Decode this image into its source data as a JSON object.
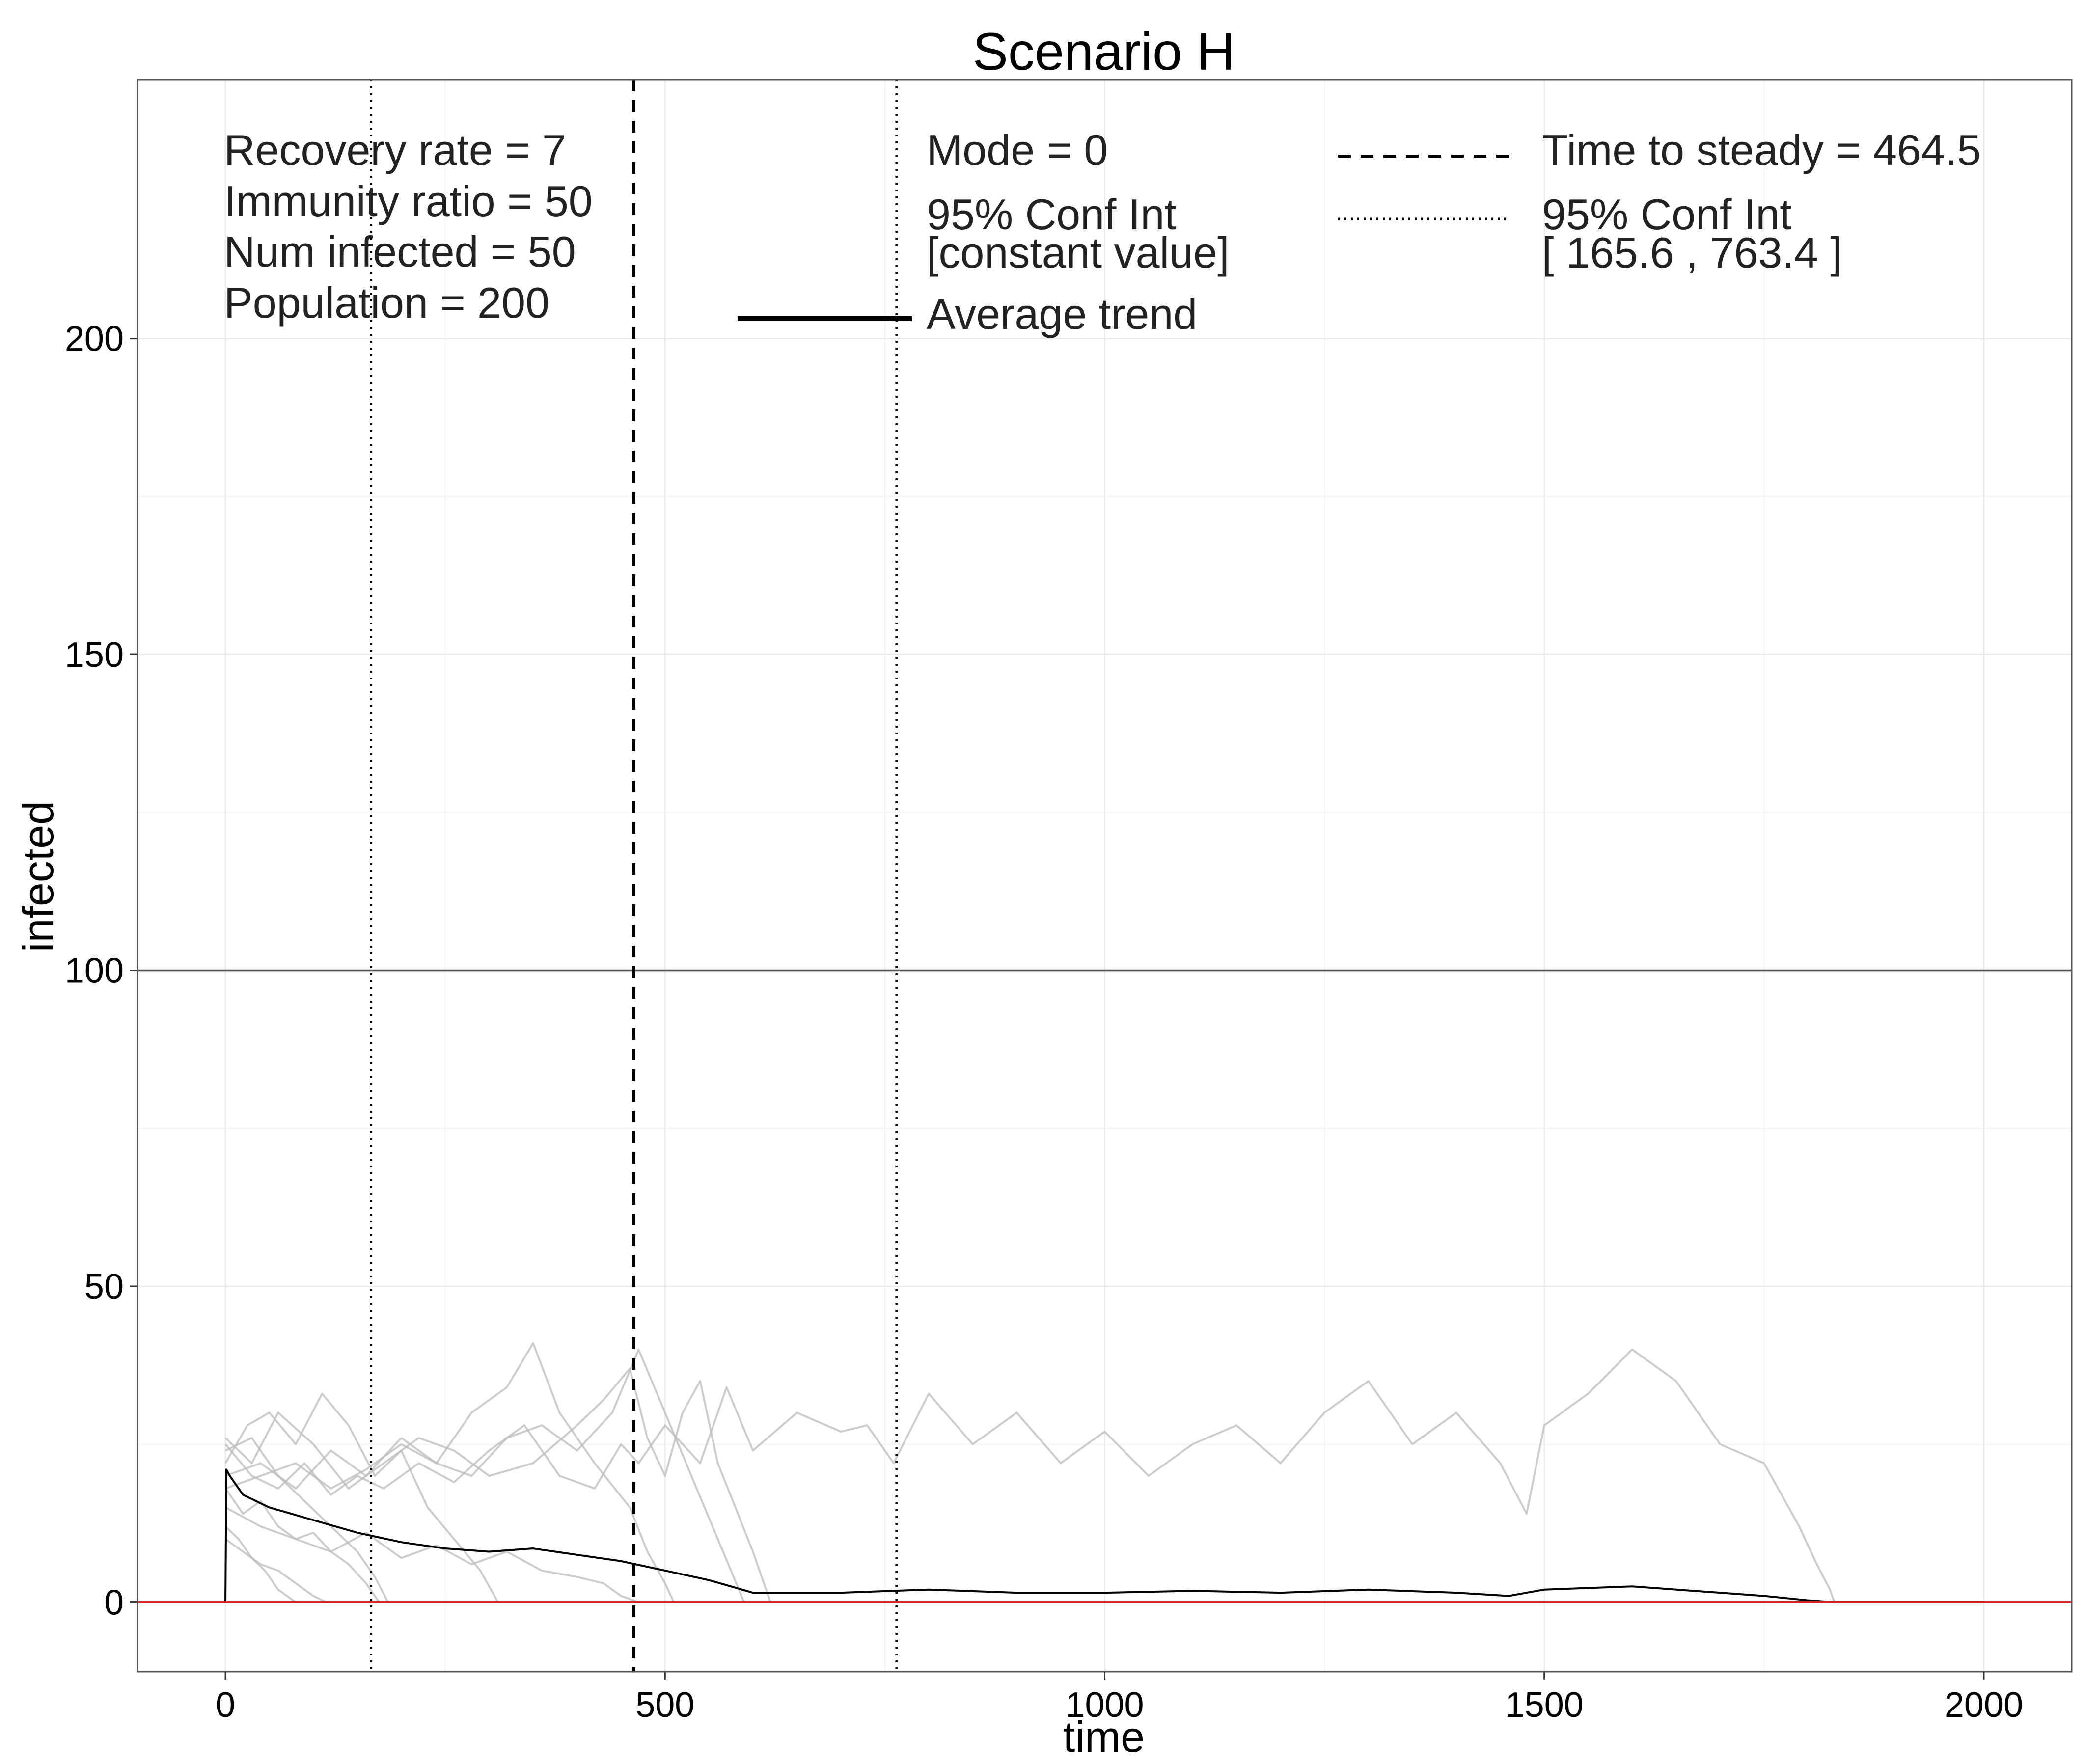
{
  "chart_data": {
    "type": "line",
    "title": "Scenario H",
    "xlabel": "time",
    "ylabel": "infected",
    "xlim": [
      -100,
      2100
    ],
    "ylim": [
      -11,
      241
    ],
    "x_ticks": [
      0,
      500,
      1000,
      1500,
      2000
    ],
    "y_ticks": [
      0,
      50,
      100,
      150,
      200
    ],
    "grid": true,
    "annotations": {
      "left": [
        "Recovery rate = 7",
        "Immunity ratio = 50",
        "Num infected = 50",
        "Population = 200"
      ],
      "mode": "Mode = 0",
      "mode_ci_label": "95% Conf Int",
      "mode_ci_value": "[constant value]",
      "average_trend": "Average trend",
      "time_to_steady": "Time to steady = 464.5",
      "steady_ci_label": "95% Conf Int",
      "steady_ci_value": "[ 165.6 , 763.4 ]"
    },
    "reference_lines": {
      "horizontal": [
        {
          "y": 100,
          "color": "#555555"
        },
        {
          "y": 0,
          "color": "#e41a1c"
        }
      ],
      "vertical": [
        {
          "x": 464.5,
          "style": "dashed"
        },
        {
          "x": 165.6,
          "style": "dotted"
        },
        {
          "x": 763.4,
          "style": "dotted"
        }
      ]
    },
    "series": [
      {
        "role": "average",
        "color": "#000000",
        "x": [
          0,
          1,
          5,
          20,
          50,
          100,
          150,
          200,
          250,
          300,
          350,
          400,
          450,
          500,
          550,
          600,
          650,
          700,
          800,
          900,
          1000,
          1100,
          1200,
          1300,
          1400,
          1460,
          1500,
          1600,
          1700,
          1750,
          1800,
          1830,
          2000
        ],
        "y": [
          0,
          21,
          20,
          17,
          15,
          13,
          11,
          9.5,
          8.5,
          8,
          8.5,
          7.5,
          6.5,
          5,
          3.5,
          1.5,
          1.5,
          1.5,
          2,
          1.5,
          1.5,
          1.8,
          1.5,
          2,
          1.5,
          1,
          2,
          2.5,
          1.5,
          1,
          0.3,
          0,
          0
        ]
      },
      {
        "role": "run",
        "color": "#bbbbbb",
        "x": [
          0,
          30,
          60,
          90,
          120,
          150,
          180,
          220,
          260,
          300,
          340,
          380,
          420,
          450,
          470,
          500,
          540,
          570,
          600,
          650,
          700,
          730,
          760,
          800,
          850,
          900,
          950,
          1000,
          1050,
          1100,
          1150,
          1200,
          1250,
          1300,
          1350,
          1400,
          1450,
          1480,
          1500,
          1550,
          1600,
          1650,
          1700,
          1750,
          1790,
          1810,
          1825,
          1830
        ],
        "y": [
          25,
          20,
          18,
          22,
          17,
          20,
          18,
          22,
          19,
          24,
          28,
          20,
          18,
          25,
          22,
          28,
          22,
          34,
          24,
          30,
          27,
          28,
          22,
          33,
          25,
          30,
          22,
          27,
          20,
          25,
          28,
          22,
          30,
          35,
          25,
          30,
          22,
          14,
          28,
          33,
          40,
          35,
          25,
          22,
          12,
          6,
          2,
          0
        ]
      },
      {
        "role": "run",
        "color": "#bbbbbb",
        "x": [
          0,
          25,
          50,
          80,
          110,
          140,
          170,
          200,
          230,
          260,
          290,
          310
        ],
        "y": [
          22,
          28,
          30,
          25,
          33,
          28,
          20,
          24,
          15,
          10,
          5,
          0
        ]
      },
      {
        "role": "run",
        "color": "#bbbbbb",
        "x": [
          0,
          20,
          40,
          60,
          80,
          100,
          120,
          140,
          160,
          175
        ],
        "y": [
          18,
          14,
          16,
          12,
          10,
          11,
          8,
          6,
          3,
          0
        ]
      },
      {
        "role": "run",
        "color": "#bbbbbb",
        "x": [
          0,
          40,
          80,
          120,
          160,
          200,
          240,
          280,
          320,
          350,
          380,
          420,
          460,
          480,
          500,
          510
        ],
        "y": [
          20,
          22,
          18,
          24,
          20,
          26,
          22,
          30,
          34,
          41,
          30,
          22,
          15,
          8,
          3,
          0
        ]
      },
      {
        "role": "run",
        "color": "#bbbbbb",
        "x": [
          0,
          30,
          60,
          90,
          120,
          150,
          170,
          185
        ],
        "y": [
          24,
          26,
          20,
          16,
          12,
          8,
          4,
          0
        ]
      },
      {
        "role": "run",
        "color": "#bbbbbb",
        "x": [
          0,
          30,
          60,
          100,
          140,
          180,
          220,
          260,
          300,
          350,
          400,
          430,
          460,
          480,
          500,
          520,
          540,
          560,
          580,
          600,
          620
        ],
        "y": [
          26,
          22,
          30,
          25,
          18,
          22,
          26,
          24,
          20,
          22,
          28,
          32,
          37,
          26,
          20,
          30,
          35,
          22,
          15,
          8,
          0
        ]
      },
      {
        "role": "run",
        "color": "#bbbbbb",
        "x": [
          0,
          15,
          30,
          45,
          60,
          80
        ],
        "y": [
          12,
          10,
          7,
          5,
          2,
          0
        ]
      },
      {
        "role": "run",
        "color": "#bbbbbb",
        "x": [
          0,
          40,
          80,
          120,
          160,
          200,
          240,
          280,
          320,
          360,
          400,
          430,
          450,
          470
        ],
        "y": [
          15,
          12,
          10,
          8,
          11,
          7,
          9,
          6,
          8,
          5,
          4,
          3,
          1,
          0
        ]
      },
      {
        "role": "run",
        "color": "#bbbbbb",
        "x": [
          0,
          40,
          80,
          120,
          160,
          200,
          240,
          280,
          320,
          360,
          400,
          440,
          470,
          500,
          530,
          560,
          590
        ],
        "y": [
          18,
          20,
          22,
          18,
          21,
          25,
          22,
          20,
          26,
          28,
          24,
          30,
          40,
          30,
          20,
          10,
          0
        ]
      },
      {
        "role": "run",
        "color": "#bbbbbb",
        "x": [
          0,
          20,
          40,
          60,
          80,
          100,
          115
        ],
        "y": [
          10,
          8,
          6,
          5,
          3,
          1,
          0
        ]
      }
    ]
  }
}
